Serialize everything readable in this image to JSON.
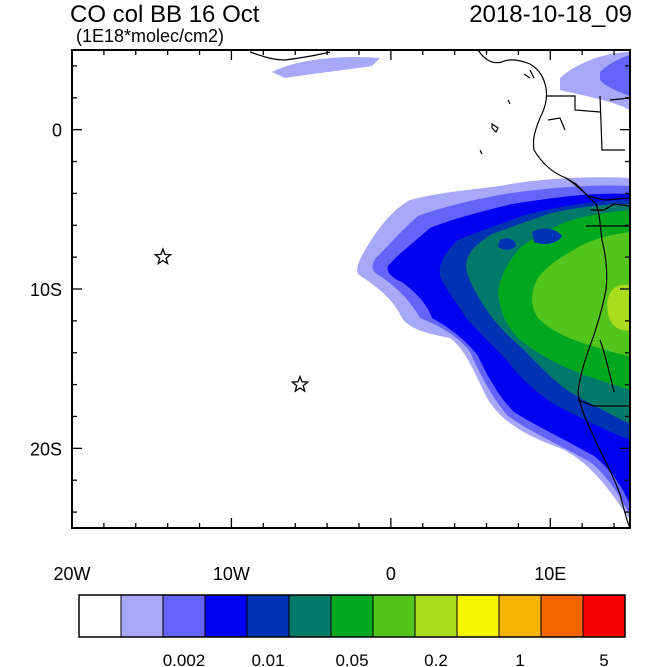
{
  "header": {
    "title": "CO col BB 16 Oct",
    "units": "(1E18*molec/cm2)",
    "timestamp": "2018-10-18_09"
  },
  "chart_data": {
    "type": "heatmap",
    "region": {
      "lon_range": [
        -20,
        15
      ],
      "lat_range": [
        -25,
        5
      ]
    },
    "x_ticks": [
      {
        "value": -20,
        "label": "20W"
      },
      {
        "value": -10,
        "label": "10W"
      },
      {
        "value": 0,
        "label": "0"
      },
      {
        "value": 10,
        "label": "10E"
      }
    ],
    "y_ticks": [
      {
        "value": 0,
        "label": "0"
      },
      {
        "value": -10,
        "label": "10S"
      },
      {
        "value": -20,
        "label": "20S"
      }
    ],
    "markers": [
      {
        "name": "star-1",
        "lon": -14.3,
        "lat": -8.0
      },
      {
        "name": "star-2",
        "lon": -5.7,
        "lat": -16.0
      }
    ],
    "colorbar": {
      "colors": [
        "#ffffff",
        "#a8a8f8",
        "#6464f8",
        "#0000f0",
        "#0032b4",
        "#00786a",
        "#00a820",
        "#52c41c",
        "#a8dc1c",
        "#f5f500",
        "#f5b400",
        "#f56400",
        "#f50000"
      ],
      "labels": [
        "0.002",
        "0.01",
        "0.05",
        "0.2",
        "1",
        "5"
      ]
    }
  }
}
